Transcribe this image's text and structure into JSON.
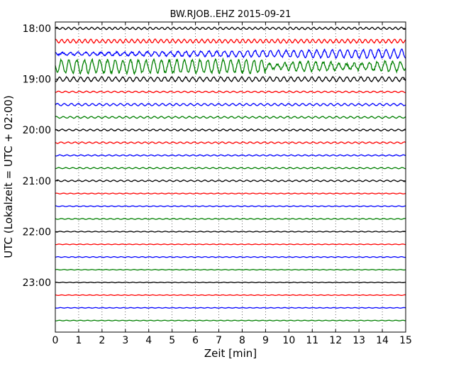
{
  "chart_data": {
    "type": "line",
    "title": "BW.RJOB..EHZ 2015-09-21",
    "xlabel": "Zeit  [min]",
    "ylabel": "UTC (Lokalzeit = UTC + 02:00)",
    "xlim": [
      0,
      15
    ],
    "x_ticks": [
      "0",
      "1",
      "2",
      "3",
      "4",
      "5",
      "6",
      "7",
      "8",
      "9",
      "10",
      "11",
      "12",
      "13",
      "14",
      "15"
    ],
    "y_ticks": [
      {
        "label": "18:00",
        "row": 0
      },
      {
        "label": "19:00",
        "row": 4
      },
      {
        "label": "20:00",
        "row": 8
      },
      {
        "label": "21:00",
        "row": 12
      },
      {
        "label": "22:00",
        "row": 16
      },
      {
        "label": "23:00",
        "row": 20
      }
    ],
    "row_minutes": 15,
    "grid": {
      "vertical": true,
      "style": "dotted"
    },
    "colors": [
      "#000000",
      "#ff0000",
      "#0000ff",
      "#008000"
    ],
    "traces": [
      {
        "start": "18:00",
        "amplitude": 1.5,
        "period_min": 0.25,
        "color": "#000000"
      },
      {
        "start": "18:15",
        "amplitude": 2.5,
        "period_min": 0.25,
        "color": "#ff0000"
      },
      {
        "start": "18:30",
        "amplitude": 6.0,
        "period_min": 0.33,
        "color": "#0000ff",
        "note_env": "growing"
      },
      {
        "start": "18:45",
        "amplitude": 9.0,
        "period_min": 0.33,
        "color": "#008000",
        "note_env": "strong"
      },
      {
        "start": "19:00",
        "amplitude": 3.0,
        "period_min": 0.3,
        "color": "#000000"
      },
      {
        "start": "19:15",
        "amplitude": 1.0,
        "period_min": 0.3,
        "color": "#ff0000"
      },
      {
        "start": "19:30",
        "amplitude": 1.5,
        "period_min": 0.3,
        "color": "#0000ff"
      },
      {
        "start": "19:45",
        "amplitude": 1.2,
        "period_min": 0.3,
        "color": "#008000"
      },
      {
        "start": "20:00",
        "amplitude": 1.2,
        "period_min": 0.3,
        "color": "#000000"
      },
      {
        "start": "20:15",
        "amplitude": 1.0,
        "period_min": 0.3,
        "color": "#ff0000"
      },
      {
        "start": "20:30",
        "amplitude": 0.8,
        "period_min": 0.3,
        "color": "#0000ff"
      },
      {
        "start": "20:45",
        "amplitude": 0.8,
        "period_min": 0.3,
        "color": "#008000"
      },
      {
        "start": "21:00",
        "amplitude": 1.0,
        "period_min": 0.3,
        "color": "#000000"
      },
      {
        "start": "21:15",
        "amplitude": 0.5,
        "period_min": 0.3,
        "color": "#ff0000"
      },
      {
        "start": "21:30",
        "amplitude": 0.5,
        "period_min": 0.3,
        "color": "#0000ff"
      },
      {
        "start": "21:45",
        "amplitude": 0.6,
        "period_min": 0.3,
        "color": "#008000"
      },
      {
        "start": "22:00",
        "amplitude": 0.5,
        "period_min": 0.3,
        "color": "#000000"
      },
      {
        "start": "22:15",
        "amplitude": 0.4,
        "period_min": 0.3,
        "color": "#ff0000"
      },
      {
        "start": "22:30",
        "amplitude": 0.5,
        "period_min": 0.3,
        "color": "#0000ff"
      },
      {
        "start": "22:45",
        "amplitude": 0.4,
        "period_min": 0.3,
        "color": "#008000"
      },
      {
        "start": "23:00",
        "amplitude": 0.4,
        "period_min": 0.3,
        "color": "#000000"
      },
      {
        "start": "23:15",
        "amplitude": 0.4,
        "period_min": 0.3,
        "color": "#ff0000"
      },
      {
        "start": "23:30",
        "amplitude": 0.4,
        "period_min": 0.3,
        "color": "#0000ff"
      },
      {
        "start": "23:45",
        "amplitude": 0.4,
        "period_min": 0.3,
        "color": "#008000"
      }
    ]
  }
}
